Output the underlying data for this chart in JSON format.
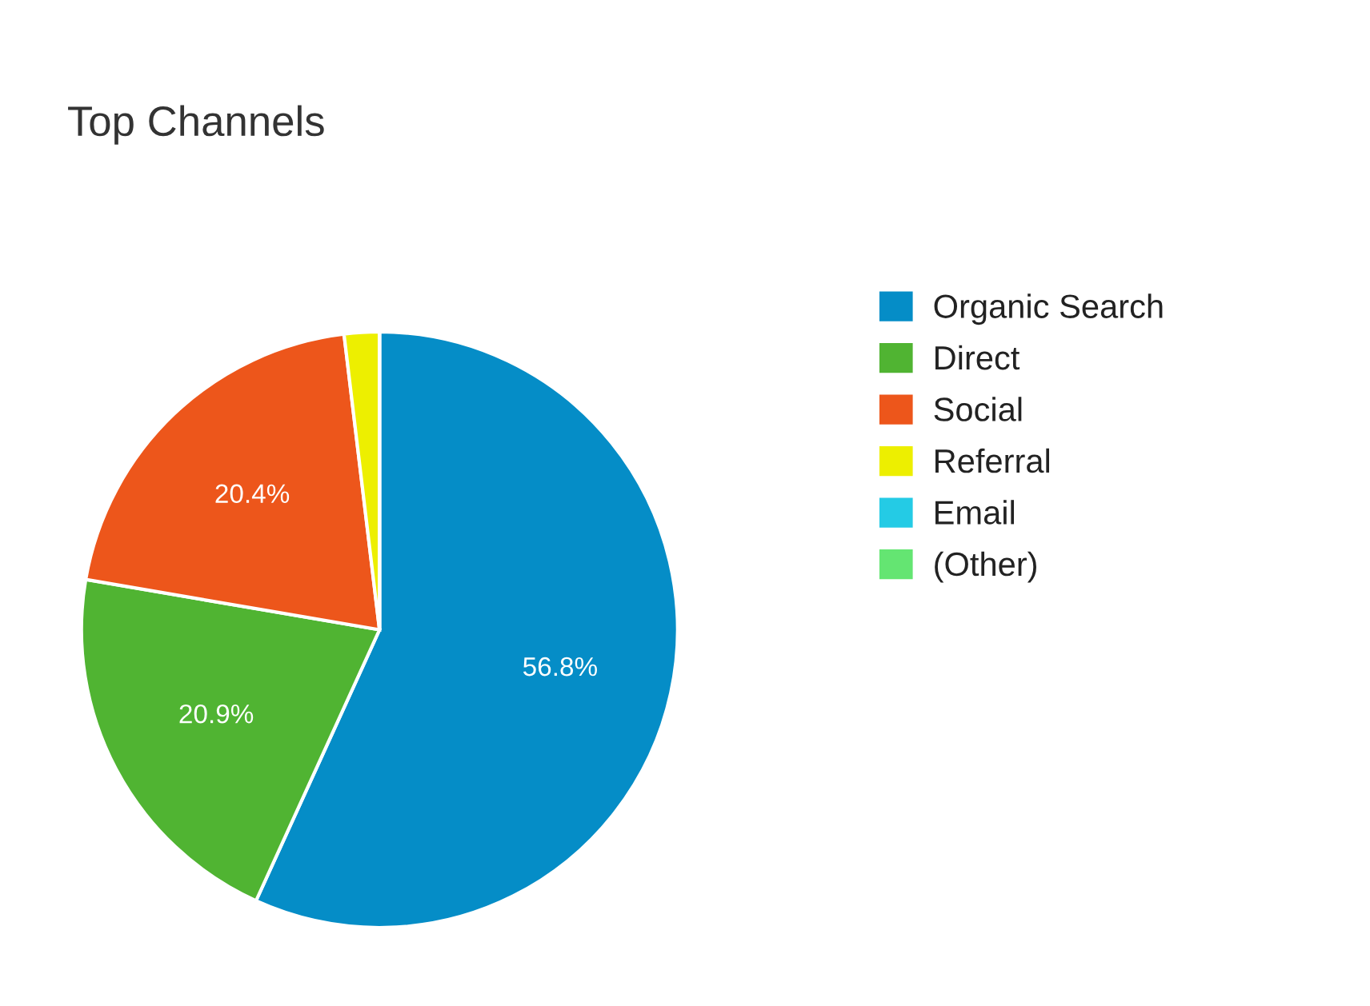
{
  "chart_data": {
    "type": "pie",
    "title": "Top Channels",
    "categories": [
      "Organic Search",
      "Direct",
      "Social",
      "Referral",
      "Email",
      "(Other)"
    ],
    "values": [
      56.8,
      20.9,
      20.4,
      1.9,
      0,
      0
    ],
    "colors": [
      "#058dc7",
      "#50b432",
      "#ed561b",
      "#edef00",
      "#24cbe5",
      "#64e572"
    ],
    "value_labels": [
      "56.8%",
      "20.9%",
      "20.4%",
      null,
      null,
      null
    ],
    "legend": "right"
  }
}
